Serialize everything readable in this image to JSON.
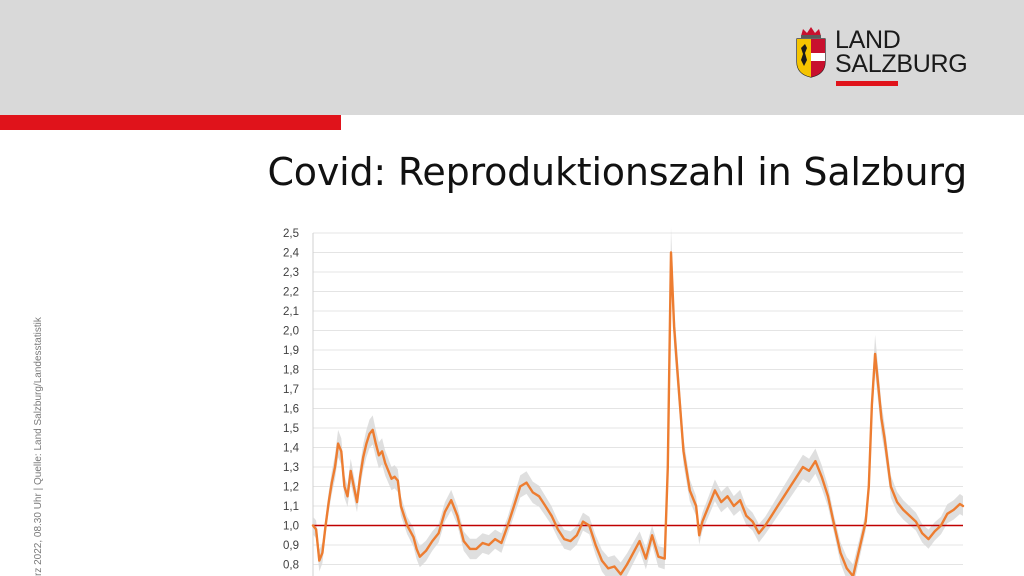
{
  "header": {
    "brand_line1": "LAND",
    "brand_line2": "SALZBURG",
    "colors": {
      "band": "#d9d9d9",
      "accent": "#e0131b"
    }
  },
  "page": {
    "title": "Covid: Reproduktionszahl in Salzburg",
    "side_note": "rz  2022, 08.30 Uhr | Quelle: Land Salzburg/Landesstatistik"
  },
  "chart_data": {
    "type": "line",
    "title": "Covid: Reproduktionszahl in Salzburg",
    "xlabel": "",
    "ylabel": "",
    "ylim": [
      0.8,
      2.5
    ],
    "yticks": [
      "0,8",
      "0,9",
      "1,0",
      "1,1",
      "1,2",
      "1,3",
      "1,4",
      "1,5",
      "1,6",
      "1,7",
      "1,8",
      "1,9",
      "2,0",
      "2,1",
      "2,2",
      "2,3",
      "2,4",
      "2,5"
    ],
    "grid": true,
    "reference_line": {
      "y": 1.0,
      "color": "#c00000"
    },
    "series": [
      {
        "color": "#ed7d31",
        "band_color": "#d9d9d9",
        "points": [
          [
            0,
            1.0
          ],
          [
            0.5,
            0.98
          ],
          [
            1,
            0.82
          ],
          [
            1.5,
            0.86
          ],
          [
            2,
            1.0
          ],
          [
            2.5,
            1.12
          ],
          [
            3,
            1.22
          ],
          [
            3.5,
            1.3
          ],
          [
            4,
            1.42
          ],
          [
            4.5,
            1.38
          ],
          [
            5,
            1.2
          ],
          [
            5.5,
            1.15
          ],
          [
            6,
            1.28
          ],
          [
            6.5,
            1.2
          ],
          [
            7,
            1.12
          ],
          [
            7.5,
            1.25
          ],
          [
            8,
            1.35
          ],
          [
            8.5,
            1.42
          ],
          [
            9,
            1.47
          ],
          [
            9.5,
            1.49
          ],
          [
            10,
            1.42
          ],
          [
            10.5,
            1.36
          ],
          [
            11,
            1.38
          ],
          [
            11.5,
            1.32
          ],
          [
            12,
            1.28
          ],
          [
            12.5,
            1.24
          ],
          [
            13,
            1.25
          ],
          [
            13.5,
            1.23
          ],
          [
            14,
            1.1
          ],
          [
            15,
            1.0
          ],
          [
            16,
            0.94
          ],
          [
            16.5,
            0.88
          ],
          [
            17,
            0.84
          ],
          [
            18,
            0.87
          ],
          [
            19,
            0.92
          ],
          [
            20,
            0.96
          ],
          [
            21,
            1.07
          ],
          [
            22,
            1.13
          ],
          [
            23,
            1.05
          ],
          [
            24,
            0.92
          ],
          [
            25,
            0.88
          ],
          [
            26,
            0.88
          ],
          [
            27,
            0.91
          ],
          [
            28,
            0.9
          ],
          [
            29,
            0.93
          ],
          [
            30,
            0.91
          ],
          [
            31,
            1.0
          ],
          [
            32,
            1.1
          ],
          [
            33,
            1.2
          ],
          [
            34,
            1.22
          ],
          [
            35,
            1.17
          ],
          [
            36,
            1.15
          ],
          [
            37,
            1.1
          ],
          [
            38,
            1.05
          ],
          [
            39,
            0.98
          ],
          [
            40,
            0.93
          ],
          [
            41,
            0.92
          ],
          [
            42,
            0.95
          ],
          [
            43,
            1.02
          ],
          [
            44,
            1.0
          ],
          [
            45,
            0.9
          ],
          [
            46,
            0.82
          ],
          [
            47,
            0.78
          ],
          [
            48,
            0.79
          ],
          [
            49,
            0.75
          ],
          [
            50,
            0.8
          ],
          [
            51,
            0.86
          ],
          [
            52,
            0.92
          ],
          [
            53,
            0.83
          ],
          [
            54,
            0.95
          ],
          [
            55,
            0.84
          ],
          [
            56,
            0.83
          ],
          [
            56.5,
            1.3
          ],
          [
            57,
            2.4
          ],
          [
            57.5,
            2.02
          ],
          [
            58,
            1.8
          ],
          [
            59,
            1.38
          ],
          [
            60,
            1.18
          ],
          [
            61,
            1.1
          ],
          [
            61.5,
            0.95
          ],
          [
            62,
            1.02
          ],
          [
            63,
            1.1
          ],
          [
            64,
            1.18
          ],
          [
            65,
            1.12
          ],
          [
            66,
            1.15
          ],
          [
            67,
            1.1
          ],
          [
            68,
            1.13
          ],
          [
            69,
            1.05
          ],
          [
            70,
            1.02
          ],
          [
            71,
            0.96
          ],
          [
            72,
            1.0
          ],
          [
            73,
            1.05
          ],
          [
            74,
            1.1
          ],
          [
            75,
            1.15
          ],
          [
            76,
            1.2
          ],
          [
            77,
            1.25
          ],
          [
            78,
            1.3
          ],
          [
            79,
            1.28
          ],
          [
            80,
            1.33
          ],
          [
            81,
            1.25
          ],
          [
            82,
            1.15
          ],
          [
            83,
            1.0
          ],
          [
            84,
            0.86
          ],
          [
            85,
            0.78
          ],
          [
            86,
            0.74
          ],
          [
            87,
            0.88
          ],
          [
            88,
            1.02
          ],
          [
            88.5,
            1.2
          ],
          [
            89,
            1.62
          ],
          [
            89.5,
            1.88
          ],
          [
            90,
            1.72
          ],
          [
            90.5,
            1.55
          ],
          [
            91,
            1.45
          ],
          [
            92,
            1.2
          ],
          [
            93,
            1.12
          ],
          [
            94,
            1.08
          ],
          [
            95,
            1.05
          ],
          [
            96,
            1.02
          ],
          [
            97,
            0.96
          ],
          [
            98,
            0.93
          ],
          [
            99,
            0.97
          ],
          [
            100,
            1.0
          ],
          [
            101,
            1.06
          ],
          [
            102,
            1.08
          ],
          [
            103,
            1.11
          ],
          [
            103.5,
            1.1
          ]
        ]
      }
    ]
  }
}
